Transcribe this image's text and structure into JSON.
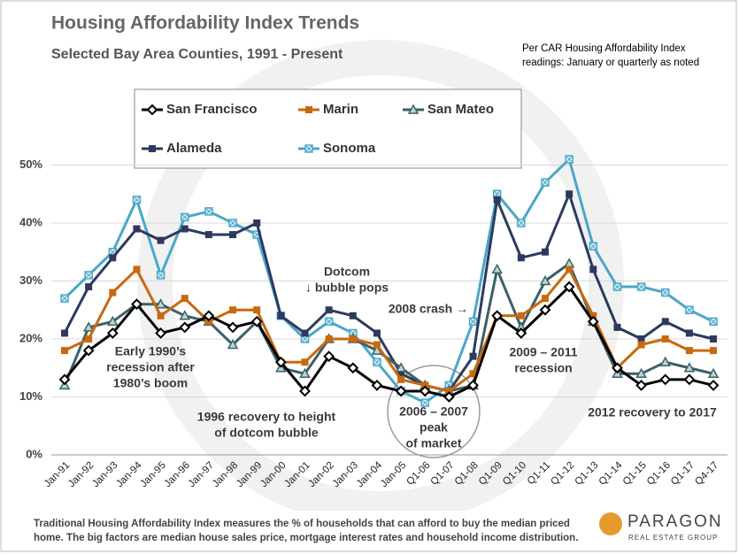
{
  "chart_data": {
    "type": "line",
    "title": "Housing Affordability Index Trends",
    "subtitle": "Selected Bay Area Counties, 1991 - Present",
    "note": [
      "Per CAR Housing Affordability Index",
      "readings: January or quarterly as noted"
    ],
    "footer": [
      "Traditional Housing Affordability Index measures the % of households that can afford to buy the median priced",
      "home. The big factors are median house sales price, mortgage interest rates and household income distribution."
    ],
    "logo": [
      "PARAGON",
      "REAL ESTATE GROUP"
    ],
    "annotations": [
      {
        "lines": [
          "Dotcom",
          "↓ bubble pops"
        ]
      },
      {
        "lines": [
          "2008 crash →"
        ]
      },
      {
        "lines": [
          "Early 1990’s",
          "recession after",
          "1980’s boom"
        ]
      },
      {
        "lines": [
          "1996 recovery to height",
          "of dotcom bubble"
        ]
      },
      {
        "lines": [
          "2006 – 2007",
          "peak",
          "of market"
        ]
      },
      {
        "lines": [
          "2009 – 2011",
          "recession"
        ]
      },
      {
        "lines": [
          "2012 recovery  to 2017"
        ]
      }
    ],
    "categories": [
      "Jan-91",
      "Jan-92",
      "Jan-93",
      "Jan-94",
      "Jan-95",
      "Jan-96",
      "Jan-97",
      "Jan-98",
      "Jan-99",
      "Jan-00",
      "Jan-01",
      "Jan-02",
      "Jan-03",
      "Jan-04",
      "Jan-05",
      "Q1-06",
      "Q1-07",
      "Q1-08",
      "Q1-09",
      "Q1-10",
      "Q1-11",
      "Q1-12",
      "Q1-13",
      "Q1-14",
      "Q1-15",
      "Q1-16",
      "Q1-17",
      "Q4-17"
    ],
    "series": [
      {
        "name": "San Francisco",
        "color": "#000000",
        "marker": "diamond",
        "values": [
          13,
          18,
          21,
          26,
          21,
          22,
          24,
          22,
          23,
          16,
          11,
          17,
          15,
          12,
          11,
          11,
          10,
          12,
          24,
          21,
          25,
          29,
          23,
          15,
          12,
          13,
          13,
          12
        ]
      },
      {
        "name": "Marin",
        "color": "#c8690f",
        "marker": "square",
        "values": [
          18,
          20,
          28,
          32,
          24,
          27,
          23,
          25,
          25,
          16,
          16,
          20,
          20,
          19,
          13,
          12,
          11,
          14,
          24,
          24,
          27,
          32,
          24,
          15,
          19,
          20,
          18,
          18
        ]
      },
      {
        "name": "San Mateo",
        "color": "#3d5f68",
        "marker": "triangle",
        "values": [
          12,
          22,
          23,
          26,
          26,
          24,
          23,
          19,
          23,
          15,
          14,
          20,
          20,
          18,
          15,
          12,
          11,
          12,
          32,
          22,
          30,
          33,
          23,
          14,
          14,
          16,
          15,
          14
        ]
      },
      {
        "name": "Alameda",
        "color": "#2d3a5e",
        "marker": "square",
        "values": [
          21,
          29,
          34,
          39,
          37,
          39,
          38,
          38,
          40,
          24,
          21,
          25,
          24,
          21,
          14,
          12,
          11,
          17,
          44,
          34,
          35,
          45,
          32,
          22,
          20,
          23,
          21,
          20
        ]
      },
      {
        "name": "Sonoma",
        "color": "#4aa7c8",
        "marker": "cross",
        "values": [
          27,
          31,
          35,
          44,
          31,
          41,
          42,
          40,
          38,
          24,
          20,
          23,
          21,
          16,
          11,
          9,
          12,
          23,
          45,
          40,
          47,
          51,
          36,
          29,
          29,
          28,
          25,
          23
        ]
      }
    ],
    "ylim": [
      0,
      60
    ],
    "yticks": [
      {
        "value": 0,
        "label": "0%"
      },
      {
        "value": 10,
        "label": "10%"
      },
      {
        "value": 20,
        "label": "20%"
      },
      {
        "value": 30,
        "label": "30%"
      },
      {
        "value": 40,
        "label": "40%"
      },
      {
        "value": 50,
        "label": "50%"
      }
    ],
    "grid": true
  }
}
